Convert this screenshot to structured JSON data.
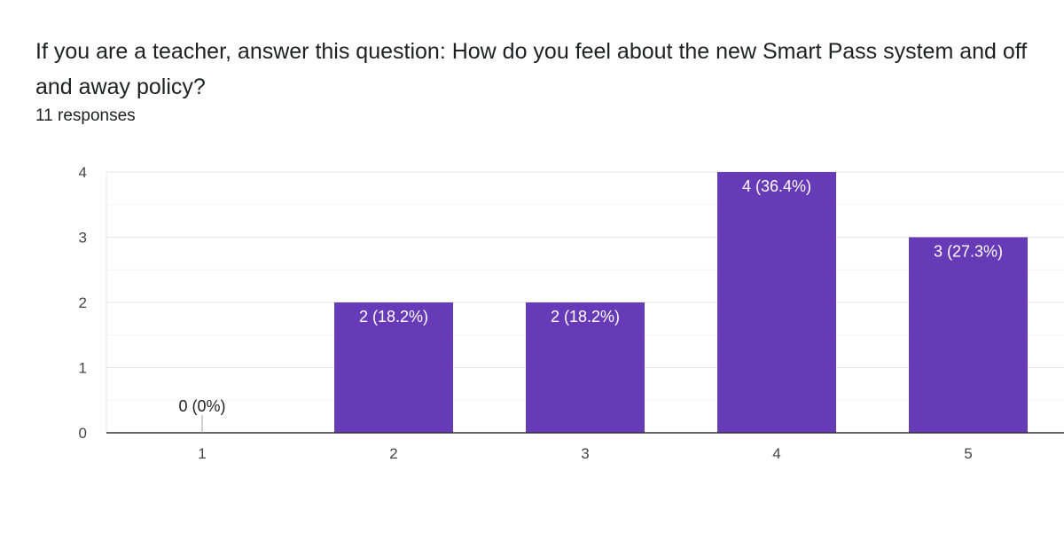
{
  "question": {
    "title": "If you are a teacher, answer this question: How do you feel about the new Smart Pass system and off and away policy?",
    "response_count": "11 responses"
  },
  "colors": {
    "bar": "#673ab7",
    "gridline": "#e6e6e6",
    "minor_gridline": "#f3f3f3",
    "axis": "#333333"
  },
  "chart_data": {
    "type": "bar",
    "categories": [
      "1",
      "2",
      "3",
      "4",
      "5"
    ],
    "values": [
      0,
      2,
      2,
      4,
      3
    ],
    "data_labels": [
      "0 (0%)",
      "2 (18.2%)",
      "2 (18.2%)",
      "4 (36.4%)",
      "3 (27.3%)"
    ],
    "title": "",
    "xlabel": "",
    "ylabel": "",
    "ylim": [
      0,
      4
    ],
    "yticks": [
      "0",
      "1",
      "2",
      "3",
      "4"
    ],
    "grid": true,
    "legend": "none"
  }
}
